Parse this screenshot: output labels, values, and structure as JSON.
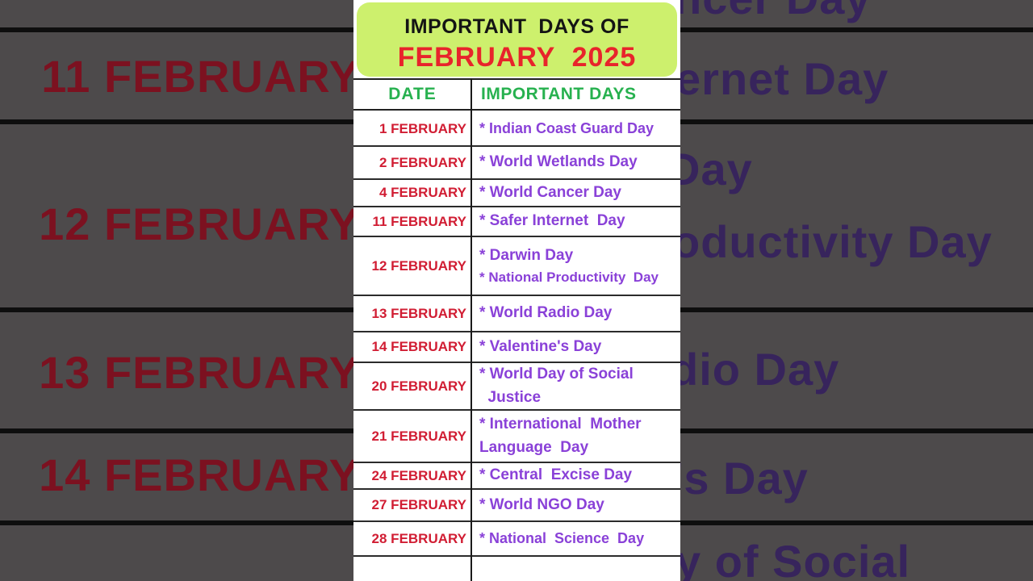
{
  "header": {
    "title_line1": "IMPORTANT  DAYS OF",
    "title_line2": "FEBRUARY  2025"
  },
  "table": {
    "columns": [
      "DATE",
      "IMPORTANT DAYS"
    ],
    "rows": [
      {
        "date": "1 FEBRUARY",
        "days": [
          "* Indian Coast Guard Day"
        ]
      },
      {
        "date": "2 FEBRUARY",
        "days": [
          "* World Wetlands Day"
        ]
      },
      {
        "date": "4 FEBRUARY",
        "days": [
          "* World Cancer Day"
        ]
      },
      {
        "date": "11 FEBRUARY",
        "days": [
          "* Safer Internet  Day"
        ]
      },
      {
        "date": "12 FEBRUARY",
        "days": [
          "* Darwin Day",
          "* National Productivity  Day"
        ]
      },
      {
        "date": "13 FEBRUARY",
        "days": [
          "* World Radio Day"
        ]
      },
      {
        "date": "14 FEBRUARY",
        "days": [
          "* Valentine's Day"
        ]
      },
      {
        "date": "20 FEBRUARY",
        "days": [
          "* World Day of Social",
          "  Justice"
        ]
      },
      {
        "date": "21 FEBRUARY",
        "days": [
          "* International  Mother",
          "Language  Day"
        ]
      },
      {
        "date": "24 FEBRUARY",
        "days": [
          "* Central  Excise Day"
        ]
      },
      {
        "date": "27 FEBRUARY",
        "days": [
          "* World NGO Day"
        ]
      },
      {
        "date": "28 FEBRUARY",
        "days": [
          "* National  Science  Day"
        ]
      },
      {
        "date": "",
        "days": []
      }
    ]
  },
  "background": {
    "left_fragments": [
      "11 FEBRUARY",
      "12 FEBRUARY",
      "13 FEBRUARY",
      "14 FEBRUARY"
    ],
    "right_fragments": [
      "ncer Day",
      "ernet Day",
      "Day",
      "oductivity Day",
      "dio Day",
      "'s Day",
      "y of Social"
    ]
  },
  "colors": {
    "card_lime": "#cdf06d",
    "title_red": "#e8242b",
    "header_green": "#27b14f",
    "date_red": "#d11d33",
    "day_purple": "#8a41d8",
    "background_gray": "#4d4a4b",
    "bg_date_red": "#7c1120",
    "bg_day_purple": "#37245c"
  }
}
